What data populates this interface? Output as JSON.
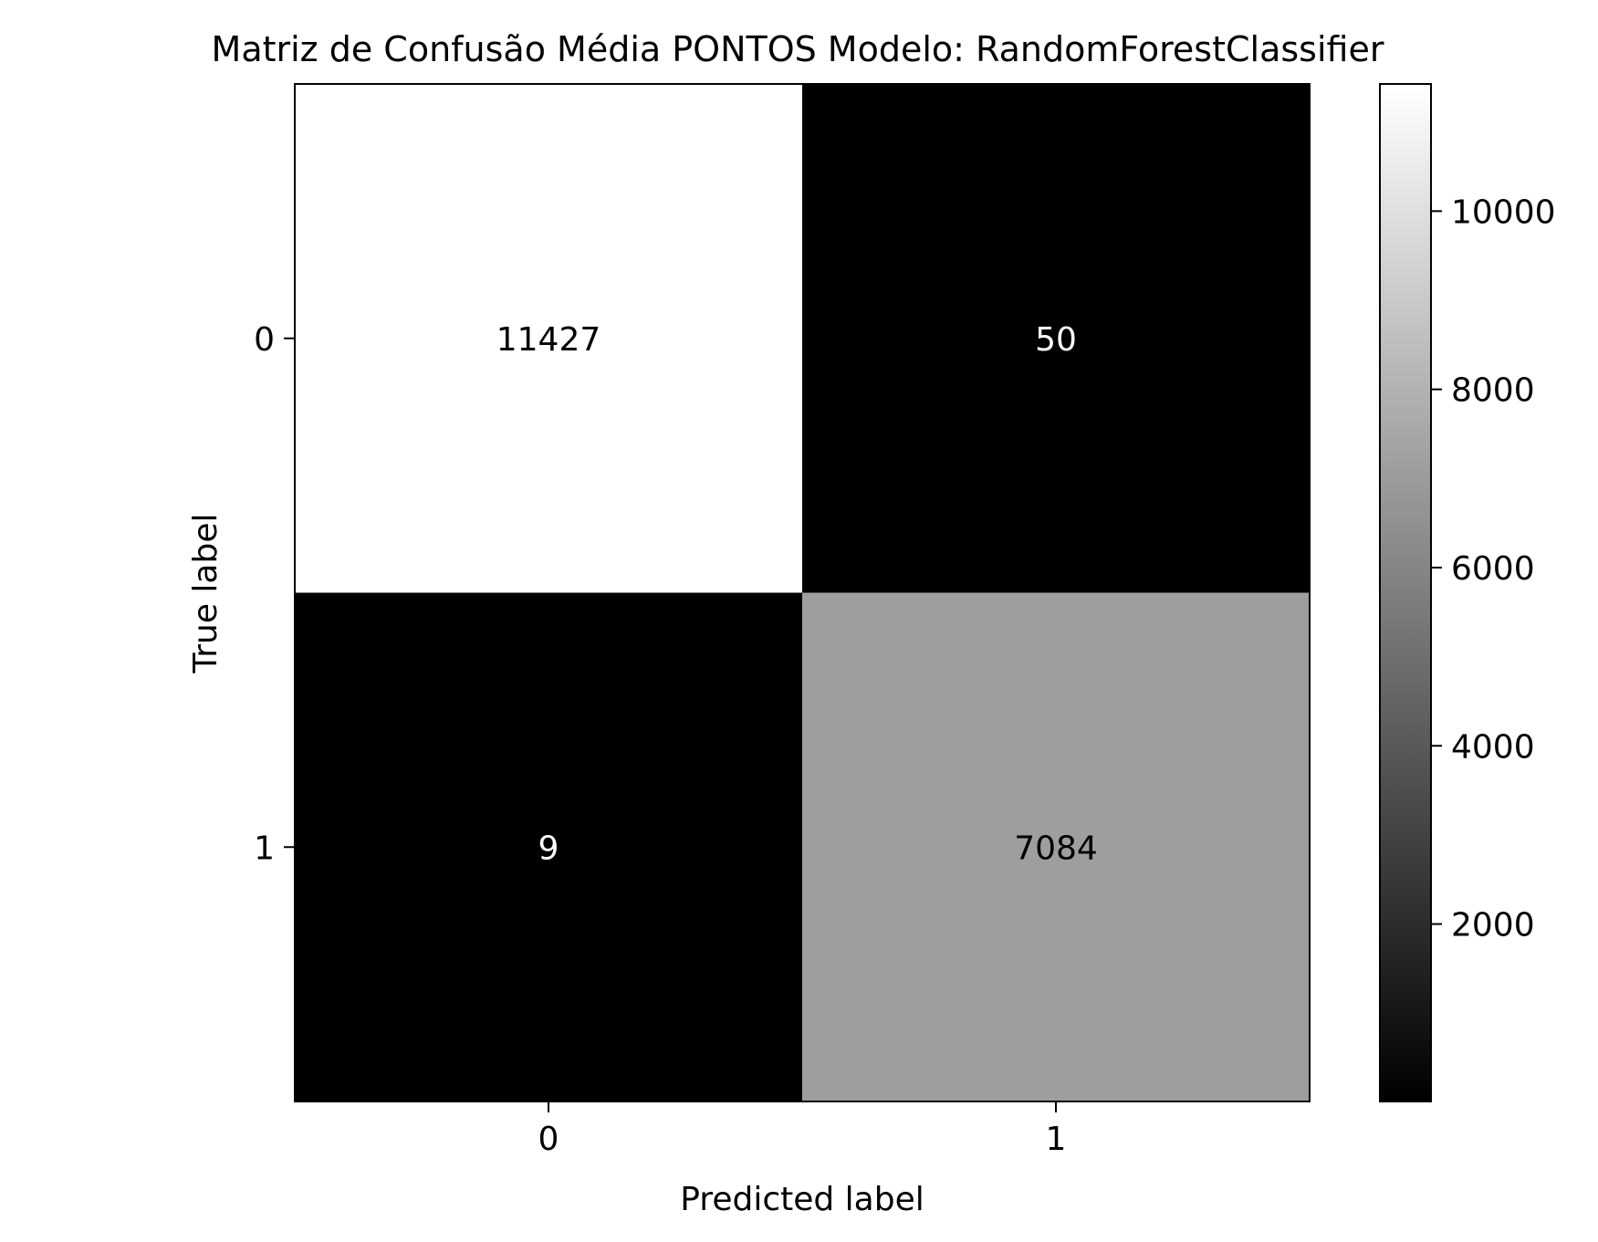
{
  "chart_data": {
    "type": "heatmap",
    "title": "Matriz de Confusão Média PONTOS Modelo: RandomForestClassifier",
    "xlabel": "Predicted label",
    "ylabel": "True label",
    "x_categories": [
      "0",
      "1"
    ],
    "y_categories": [
      "0",
      "1"
    ],
    "matrix": [
      [
        11427,
        50
      ],
      [
        9,
        7084
      ]
    ],
    "cell_labels": [
      [
        "11427",
        "50"
      ],
      [
        "9",
        "7084"
      ]
    ],
    "colormap": "gray",
    "colorbar": {
      "range": [
        9,
        11427
      ],
      "ticks": [
        2000,
        4000,
        6000,
        8000,
        10000
      ],
      "tick_labels": [
        "2000",
        "4000",
        "6000",
        "8000",
        "10000"
      ]
    },
    "grid": false,
    "legend": "none"
  }
}
